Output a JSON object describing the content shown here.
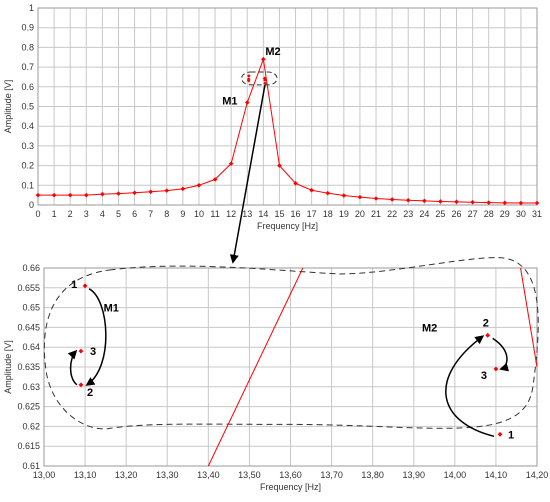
{
  "chart_data": [
    {
      "type": "line",
      "xlabel": "Frequency [Hz]",
      "ylabel": "Amplitude [V]",
      "xlim": [
        0,
        31
      ],
      "ylim": [
        0,
        1
      ],
      "xticks": [
        "0",
        "1",
        "2",
        "3",
        "4",
        "5",
        "6",
        "7",
        "8",
        "9",
        "10",
        "11",
        "12",
        "13",
        "14",
        "15",
        "16",
        "17",
        "18",
        "19",
        "20",
        "21",
        "22",
        "23",
        "24",
        "25",
        "26",
        "27",
        "28",
        "29",
        "30",
        "31"
      ],
      "yticks": [
        "0",
        "0.1",
        "0.2",
        "0.3",
        "0.4",
        "0.5",
        "0.6",
        "0.7",
        "0.8",
        "0.9",
        "1"
      ],
      "grid": true,
      "color": "#ff0000",
      "series": [
        {
          "x": [
            0,
            1,
            2,
            3,
            4,
            5,
            6,
            7,
            8,
            9,
            10,
            11,
            12,
            13,
            14,
            15,
            16,
            17,
            18,
            19,
            20,
            21,
            22,
            23,
            24,
            25,
            26,
            27,
            28,
            29,
            30,
            31
          ],
          "y": [
            0.05,
            0.05,
            0.05,
            0.05,
            0.055,
            0.058,
            0.062,
            0.067,
            0.073,
            0.082,
            0.1,
            0.13,
            0.21,
            0.52,
            0.74,
            0.2,
            0.11,
            0.075,
            0.06,
            0.048,
            0.04,
            0.033,
            0.028,
            0.024,
            0.021,
            0.018,
            0.016,
            0.014,
            0.012,
            0.011,
            0.01,
            0.01
          ]
        }
      ],
      "annotations": [
        {
          "text": "M2",
          "x": 14,
          "y": 0.74
        },
        {
          "text": "M1",
          "x": 13,
          "y": 0.52
        }
      ],
      "markers": [
        {
          "x": 13.1,
          "y": 0.6555
        },
        {
          "x": 13.09,
          "y": 0.6305
        },
        {
          "x": 13.09,
          "y": 0.639
        },
        {
          "x": 14.11,
          "y": 0.618
        },
        {
          "x": 14.08,
          "y": 0.643
        },
        {
          "x": 14.1,
          "y": 0.6345
        }
      ]
    },
    {
      "type": "scatter",
      "xlabel": "Frequency [Hz]",
      "ylabel": "Amplitude [V]",
      "xlim": [
        13.0,
        14.2
      ],
      "ylim": [
        0.61,
        0.66
      ],
      "xticks": [
        "13,00",
        "13,10",
        "13,20",
        "13,30",
        "13,40",
        "13,50",
        "13,60",
        "13,70",
        "13,80",
        "13,90",
        "14,00",
        "14,10",
        "14,20"
      ],
      "yticks": [
        "0.61",
        "0.615",
        "0.62",
        "0.625",
        "0.63",
        "0.635",
        "0.64",
        "0.645",
        "0.65",
        "0.655",
        "0.66"
      ],
      "grid": true,
      "color": "#ff0000",
      "points": [
        {
          "x": 13.1,
          "y": 0.6555,
          "label": "1",
          "group": "M1"
        },
        {
          "x": 13.09,
          "y": 0.6305,
          "label": "2",
          "group": "M1"
        },
        {
          "x": 13.09,
          "y": 0.639,
          "label": "3",
          "group": "M1"
        },
        {
          "x": 14.11,
          "y": 0.618,
          "label": "1",
          "group": "M2"
        },
        {
          "x": 14.08,
          "y": 0.643,
          "label": "2",
          "group": "M2"
        },
        {
          "x": 14.1,
          "y": 0.6345,
          "label": "3",
          "group": "M2"
        }
      ],
      "lines": [
        {
          "x": [
            13.4,
            13.63
          ],
          "y": [
            0.61,
            0.66
          ]
        },
        {
          "x": [
            14.16,
            14.2
          ],
          "y": [
            0.66,
            0.635
          ]
        }
      ],
      "annotations": [
        {
          "text": "M1",
          "x": 13.15,
          "y": 0.65
        },
        {
          "text": "M2",
          "x": 13.92,
          "y": 0.645
        }
      ]
    }
  ]
}
